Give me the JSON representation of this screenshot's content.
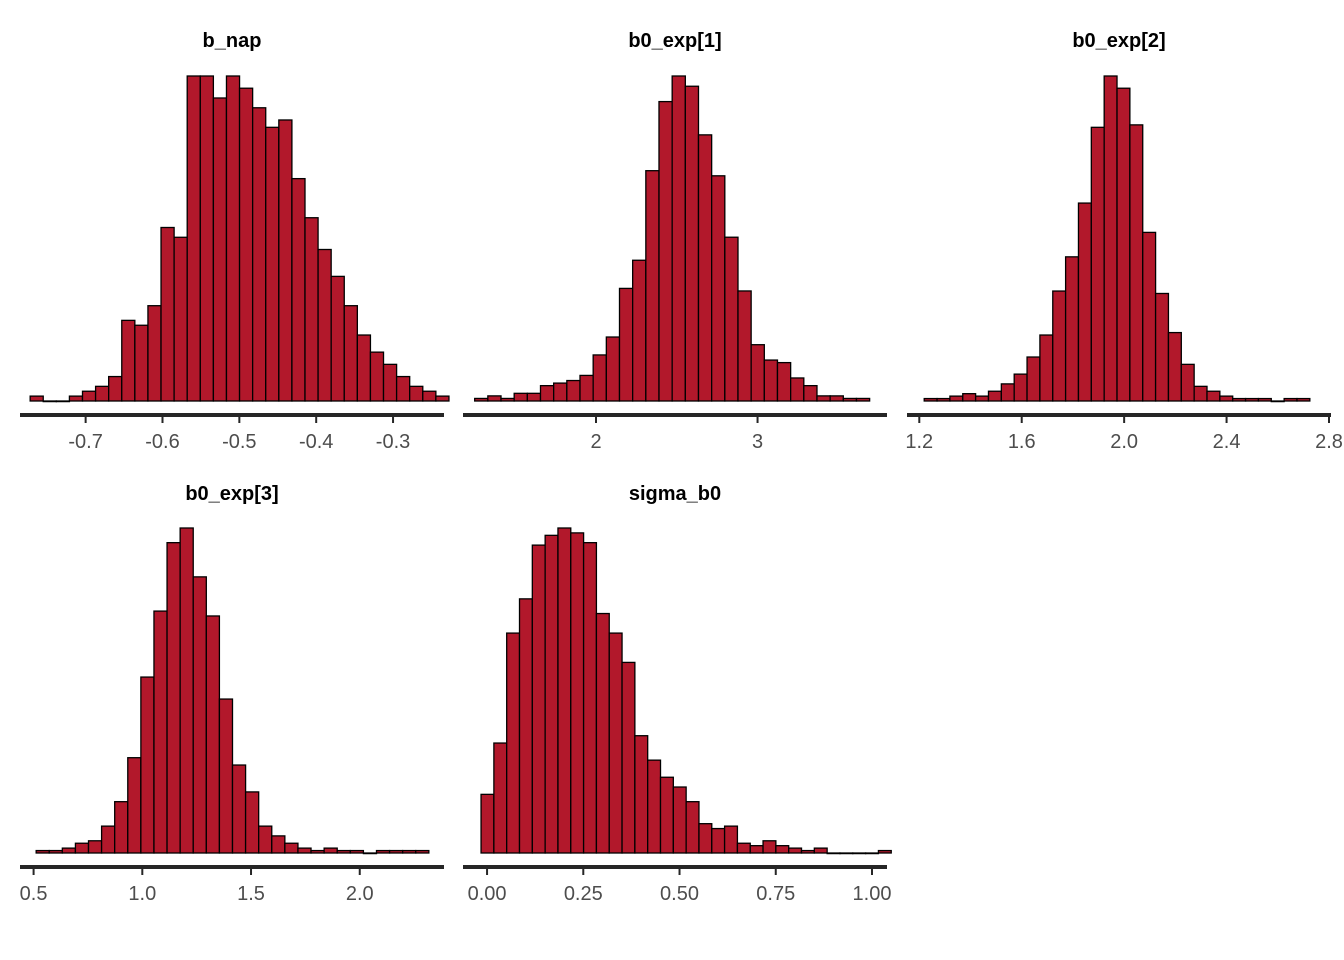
{
  "chart_data": [
    {
      "type": "bar",
      "subtype": "histogram",
      "title": "b_nap",
      "xlabel": "",
      "ylabel": "",
      "bin_start": -0.7722,
      "bin_width": 0.01703,
      "xlim": [
        -0.7828,
        -0.2363
      ],
      "counts": [
        2,
        0,
        0,
        2,
        4,
        6,
        10,
        33,
        31,
        39,
        71,
        67,
        133,
        133,
        124,
        133,
        128,
        120,
        112,
        115,
        91,
        75,
        62,
        51,
        39,
        27,
        20,
        15,
        10,
        6,
        4,
        2
      ],
      "ticks": [
        -0.7,
        -0.6,
        -0.5,
        -0.4,
        -0.3
      ],
      "tick_labels": [
        "-0.7",
        "-0.6",
        "-0.5",
        "-0.4",
        "-0.3"
      ],
      "fill_color": "#b2182b",
      "edge_color": "#000000"
    },
    {
      "type": "bar",
      "subtype": "histogram",
      "title": "b0_exp[1]",
      "xlabel": "",
      "ylabel": "",
      "bin_start": 1.2489,
      "bin_width": 0.0815,
      "xlim": [
        1.189,
        3.789
      ],
      "counts": [
        1,
        2,
        1,
        3,
        3,
        6,
        7,
        8,
        10,
        18,
        25,
        44,
        55,
        90,
        117,
        127,
        123,
        104,
        88,
        64,
        43,
        22,
        16,
        15,
        9,
        6,
        2,
        2,
        1,
        1
      ],
      "ticks": [
        2,
        3
      ],
      "tick_labels": [
        "2",
        "3"
      ],
      "fill_color": "#b2182b",
      "edge_color": "#000000"
    },
    {
      "type": "bar",
      "subtype": "histogram",
      "title": "b0_exp[2]",
      "xlabel": "",
      "ylabel": "",
      "bin_start": 1.2192,
      "bin_width": 0.0502,
      "xlim": [
        1.1598,
        2.8
      ],
      "counts": [
        1,
        1,
        2,
        3,
        2,
        4,
        7,
        11,
        18,
        27,
        45,
        59,
        81,
        112,
        133,
        128,
        113,
        69,
        44,
        28,
        15,
        6,
        4,
        2,
        1,
        1,
        1,
        0,
        1,
        1
      ],
      "ticks": [
        1.2,
        1.6,
        2.0,
        2.4,
        2.8
      ],
      "tick_labels": [
        "1.2",
        "1.6",
        "2.0",
        "2.4",
        "2.8"
      ],
      "fill_color": "#b2182b",
      "edge_color": "#000000"
    },
    {
      "type": "bar",
      "subtype": "histogram",
      "title": "b0_exp[3]",
      "xlabel": "",
      "ylabel": "",
      "bin_start": 0.5118,
      "bin_width": 0.0602,
      "xlim": [
        0.4467,
        2.3783
      ],
      "counts": [
        1,
        1,
        2,
        4,
        5,
        11,
        21,
        39,
        72,
        99,
        127,
        133,
        113,
        97,
        63,
        36,
        25,
        11,
        7,
        4,
        2,
        1,
        2,
        1,
        1,
        0,
        1,
        1,
        1,
        1
      ],
      "ticks": [
        0.5,
        1.0,
        1.5,
        2.0
      ],
      "tick_labels": [
        "0.5",
        "1.0",
        "1.5",
        "2.0"
      ],
      "fill_color": "#b2182b",
      "edge_color": "#000000"
    },
    {
      "type": "bar",
      "subtype": "histogram",
      "title": "sigma_b0",
      "xlabel": "",
      "ylabel": "",
      "bin_start": -0.0156,
      "bin_width": 0.0333,
      "xlim": [
        -0.0573,
        1.0338
      ],
      "counts": [
        24,
        45,
        90,
        104,
        126,
        130,
        133,
        131,
        127,
        98,
        90,
        78,
        48,
        38,
        31,
        27,
        21,
        12,
        10,
        11,
        4,
        3,
        5,
        3,
        2,
        1,
        2,
        0,
        0,
        0,
        0,
        1
      ],
      "ticks": [
        0.0,
        0.25,
        0.5,
        0.75,
        1.0
      ],
      "tick_labels": [
        "0.00",
        "0.25",
        "0.50",
        "0.75",
        "1.00"
      ],
      "fill_color": "#b2182b",
      "edge_color": "#000000"
    }
  ]
}
